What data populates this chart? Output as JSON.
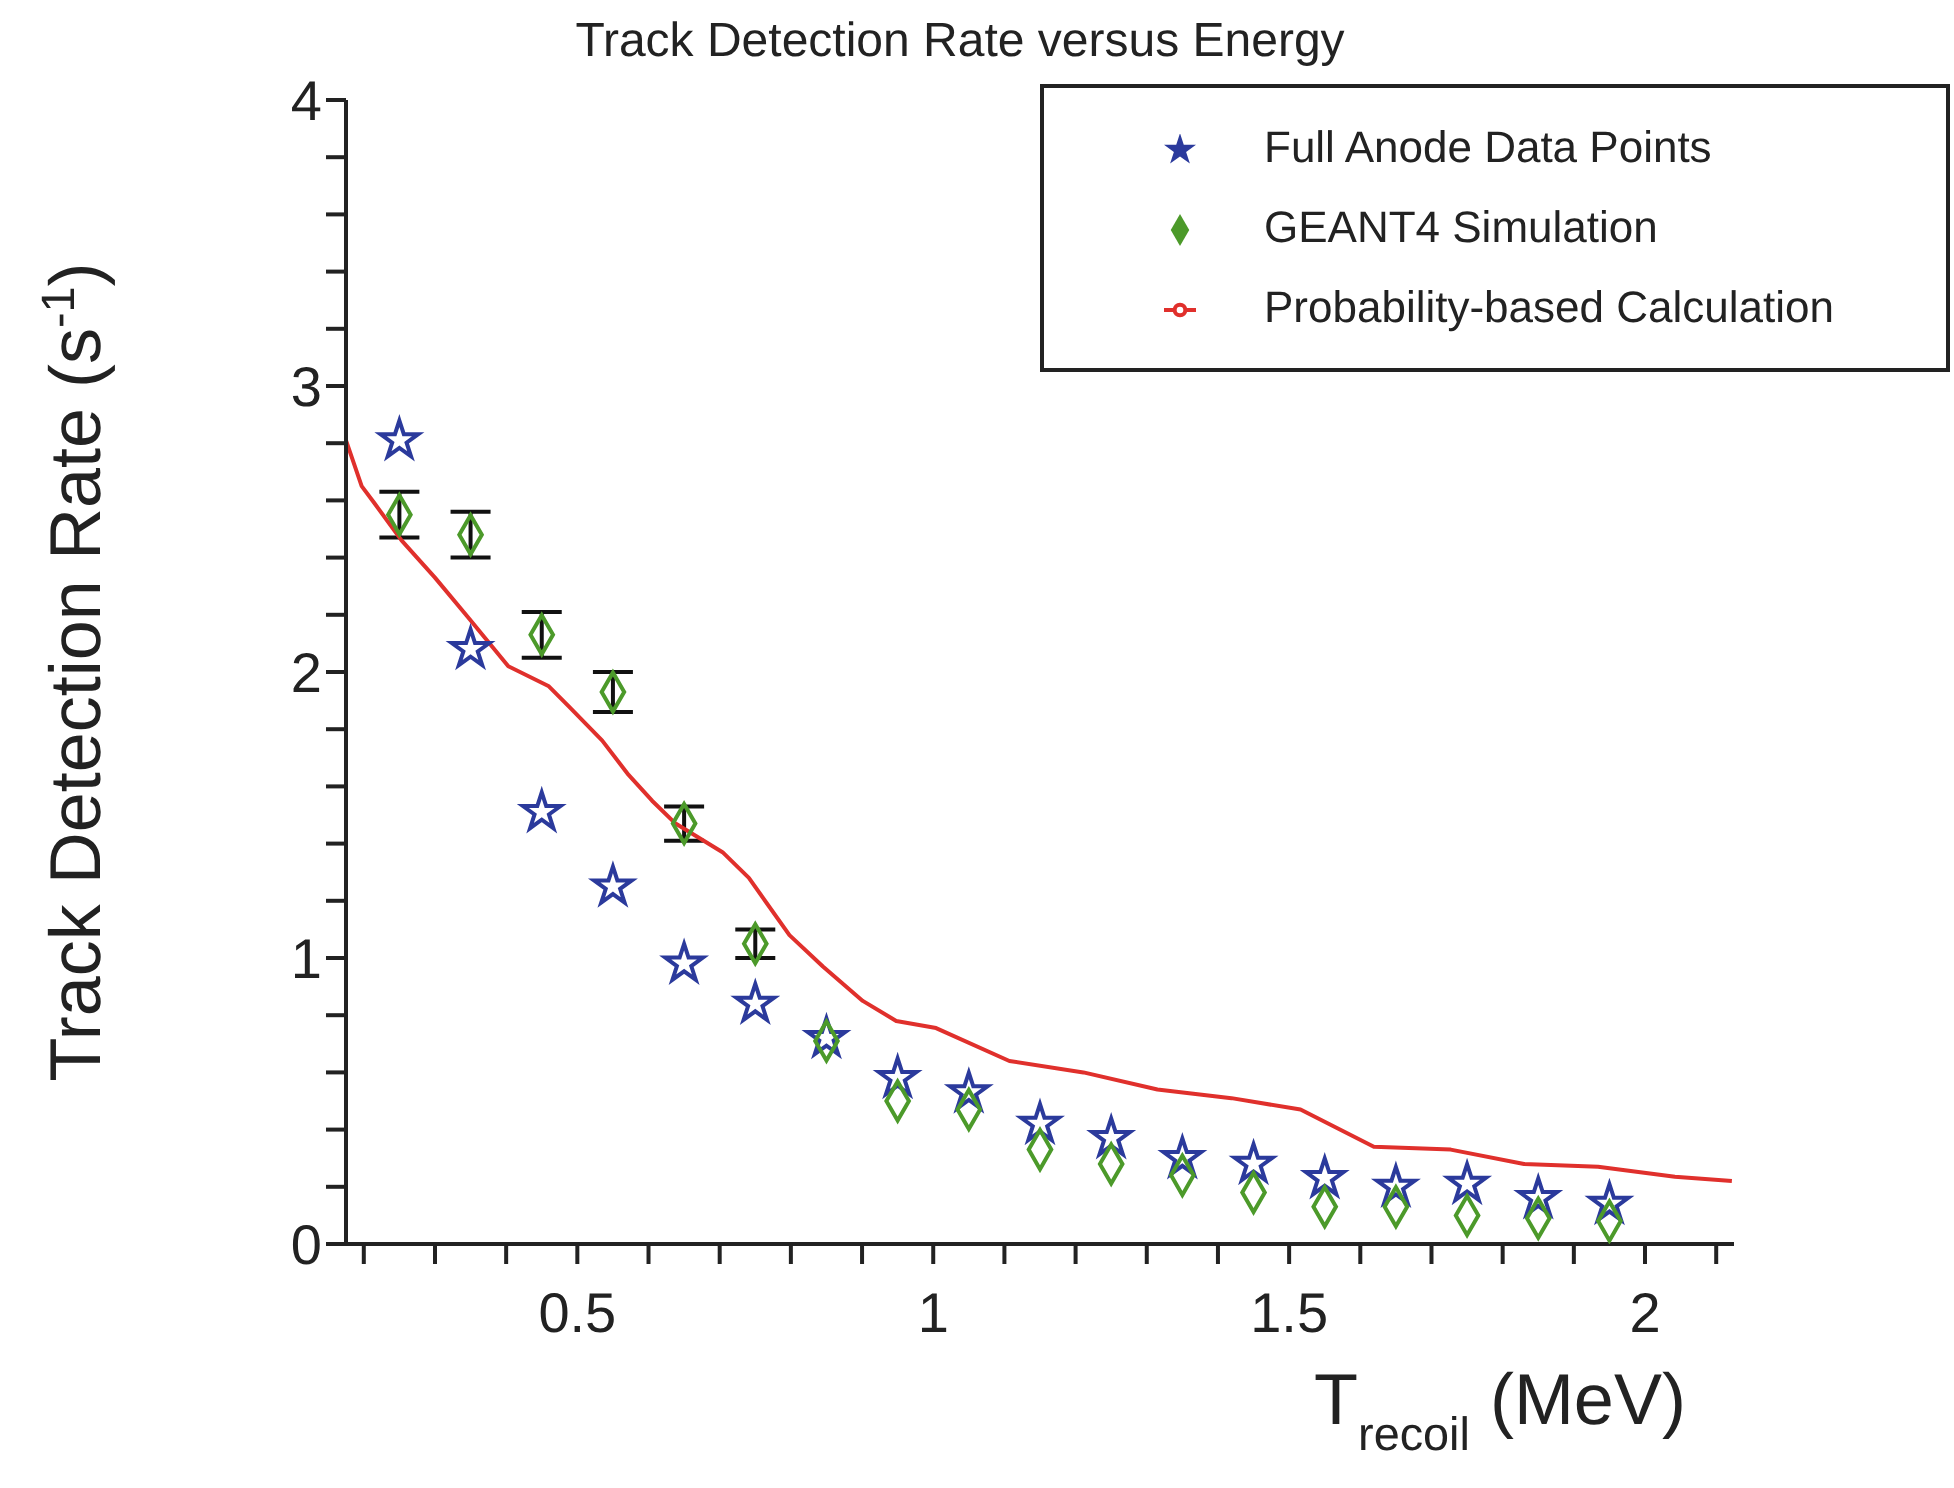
{
  "chart_data": {
    "type": "scatter",
    "title": "Track Detection Rate versus Energy",
    "xlabel": "T$_{recoil}$ (MeV)",
    "ylabel": "Track Detection Rate (s$^{-1}$)",
    "xlim": [
      0.175,
      2.125
    ],
    "ylim": [
      0,
      4
    ],
    "xticks": [
      {
        "value": 0.2,
        "label": null
      },
      {
        "value": 0.3,
        "label": null
      },
      {
        "value": 0.4,
        "label": null
      },
      0.5,
      {
        "value": 0.6,
        "label": null
      },
      {
        "value": 0.7,
        "label": null
      },
      {
        "value": 0.8,
        "label": null
      },
      {
        "value": 0.9,
        "label": null
      },
      1,
      {
        "value": 1.1,
        "label": null
      },
      {
        "value": 1.2,
        "label": null
      },
      {
        "value": 1.3,
        "label": null
      },
      {
        "value": 1.4,
        "label": null
      },
      1.5,
      {
        "value": 1.6,
        "label": null
      },
      {
        "value": 1.7,
        "label": null
      },
      {
        "value": 1.8,
        "label": null
      },
      {
        "value": 1.9,
        "label": null
      },
      2,
      {
        "value": 2.1,
        "label": null
      }
    ],
    "yticks": [
      0,
      {
        "value": 0.2,
        "label": null
      },
      {
        "value": 0.4,
        "label": null
      },
      {
        "value": 0.6,
        "label": null
      },
      {
        "value": 0.8,
        "label": null
      },
      1,
      {
        "value": 1.2,
        "label": null
      },
      {
        "value": 1.4,
        "label": null
      },
      {
        "value": 1.6,
        "label": null
      },
      {
        "value": 1.8,
        "label": null
      },
      2,
      {
        "value": 2.2,
        "label": null
      },
      {
        "value": 2.4,
        "label": null
      },
      {
        "value": 2.6,
        "label": null
      },
      {
        "value": 2.8,
        "label": null
      },
      3,
      {
        "value": 3.2,
        "label": null
      },
      {
        "value": 3.4,
        "label": null
      },
      {
        "value": 3.6,
        "label": null
      },
      {
        "value": 3.8,
        "label": null
      },
      4
    ],
    "legend": "top right",
    "series": [
      {
        "name": "Full Anode Data Points",
        "type": "scatter",
        "marker": "star",
        "color": "#2b3a9c",
        "x": [
          0.25,
          0.35,
          0.45,
          0.55,
          0.65,
          0.75,
          0.85,
          0.95,
          1.05,
          1.15,
          1.25,
          1.35,
          1.45,
          1.55,
          1.65,
          1.75,
          1.85,
          1.95
        ],
        "values": [
          2.81,
          2.08,
          1.51,
          1.25,
          0.98,
          0.84,
          0.72,
          0.58,
          0.53,
          0.42,
          0.37,
          0.3,
          0.28,
          0.23,
          0.2,
          0.21,
          0.16,
          0.14
        ]
      },
      {
        "name": "GEANT4 Simulation",
        "type": "scatter",
        "marker": "diamond",
        "color": "#4c9a2a",
        "x": [
          0.25,
          0.35,
          0.45,
          0.55,
          0.65,
          0.75,
          0.85,
          0.95,
          1.05,
          1.15,
          1.25,
          1.35,
          1.45,
          1.55,
          1.65,
          1.75,
          1.85,
          1.95
        ],
        "values": [
          2.55,
          2.48,
          2.13,
          1.93,
          1.47,
          1.05,
          0.71,
          0.5,
          0.47,
          0.33,
          0.28,
          0.24,
          0.18,
          0.13,
          0.13,
          0.1,
          0.09,
          0.08
        ],
        "errors": [
          0.08,
          0.08,
          0.08,
          0.07,
          0.06,
          0.05,
          null,
          null,
          null,
          null,
          null,
          null,
          null,
          null,
          null,
          null,
          null,
          null
        ]
      },
      {
        "name": "Probability-based Calculation",
        "type": "line",
        "marker": "none",
        "color": "#e0302c",
        "x": [
          0.175,
          0.197,
          0.215,
          0.253,
          0.3,
          0.347,
          0.403,
          0.46,
          0.488,
          0.535,
          0.572,
          0.605,
          0.638,
          0.704,
          0.741,
          0.798,
          0.845,
          0.901,
          0.948,
          1.004,
          1.107,
          1.211,
          1.315,
          1.419,
          1.516,
          1.619,
          1.727,
          1.83,
          1.934,
          2.042,
          2.122
        ],
        "values": [
          2.81,
          2.65,
          2.59,
          2.46,
          2.33,
          2.19,
          2.02,
          1.95,
          1.88,
          1.76,
          1.64,
          1.55,
          1.47,
          1.37,
          1.28,
          1.08,
          0.97,
          0.85,
          0.78,
          0.755,
          0.64,
          0.6,
          0.54,
          0.51,
          0.47,
          0.34,
          0.33,
          0.28,
          0.27,
          0.235,
          0.22
        ]
      }
    ]
  }
}
